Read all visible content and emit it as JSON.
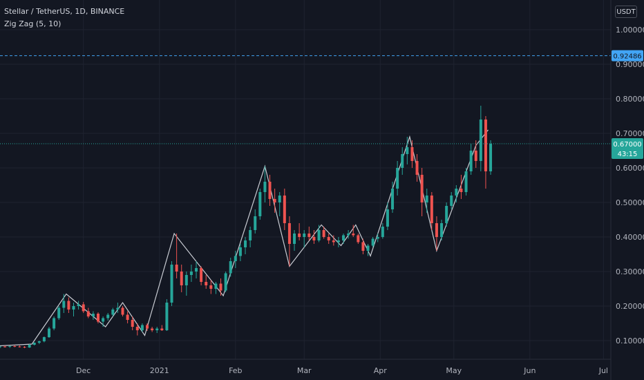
{
  "header": {
    "title": "Stellar / TetherUS, 1D, BINANCE",
    "indicator": "Zig Zag (5, 10)",
    "currency": "USDT"
  },
  "colors": {
    "background": "#131722",
    "grid": "#1f2330",
    "up": "#26a69a",
    "down": "#ef5350",
    "zigzag": "#c9ccd3",
    "alert": "#42a5f5",
    "price_label": "#26a69a"
  },
  "chart_data": {
    "type": "candlestick",
    "yticks": [
      "1.00000",
      "0.90000",
      "0.80000",
      "0.70000",
      "0.60000",
      "0.50000",
      "0.40000",
      "0.30000",
      "0.20000",
      "0.10000"
    ],
    "ytick_values": [
      1.0,
      0.9,
      0.8,
      0.7,
      0.6,
      0.5,
      0.4,
      0.3,
      0.2,
      0.1
    ],
    "ylim": [
      0.03,
      1.07
    ],
    "xlim": [
      "2020-10-28",
      "2021-07-04"
    ],
    "xticks": [
      {
        "label": "Dec",
        "date": "2020-12-01"
      },
      {
        "label": "2021",
        "date": "2021-01-01"
      },
      {
        "label": "Feb",
        "date": "2021-02-01"
      },
      {
        "label": "Mar",
        "date": "2021-03-01"
      },
      {
        "label": "Apr",
        "date": "2021-04-01"
      },
      {
        "label": "May",
        "date": "2021-05-01"
      },
      {
        "label": "Jun",
        "date": "2021-06-01"
      },
      {
        "label": "Jul",
        "date": "2021-07-01"
      }
    ],
    "grid": true,
    "alert_level": {
      "value": 0.92486,
      "label": "0.92486"
    },
    "last_price": {
      "value": 0.67,
      "label": "0.67000",
      "countdown": "43:15"
    },
    "zigzag": [
      {
        "date": "2020-10-28",
        "value": 0.085
      },
      {
        "date": "2020-11-10",
        "value": 0.09
      },
      {
        "date": "2020-11-24",
        "value": 0.235
      },
      {
        "date": "2020-12-10",
        "value": 0.14
      },
      {
        "date": "2020-12-17",
        "value": 0.21
      },
      {
        "date": "2020-12-26",
        "value": 0.115
      },
      {
        "date": "2021-01-07",
        "value": 0.41
      },
      {
        "date": "2021-01-27",
        "value": 0.23
      },
      {
        "date": "2021-02-13",
        "value": 0.605
      },
      {
        "date": "2021-02-23",
        "value": 0.315
      },
      {
        "date": "2021-03-08",
        "value": 0.435
      },
      {
        "date": "2021-03-16",
        "value": 0.375
      },
      {
        "date": "2021-03-22",
        "value": 0.435
      },
      {
        "date": "2021-03-28",
        "value": 0.345
      },
      {
        "date": "2021-04-13",
        "value": 0.69
      },
      {
        "date": "2021-04-24",
        "value": 0.36
      },
      {
        "date": "2021-05-10",
        "value": 0.665
      },
      {
        "date": "2021-05-15",
        "value": 0.71
      }
    ],
    "candles": [
      [
        "2020-10-28",
        0.081,
        0.084,
        0.078,
        0.083
      ],
      [
        "2020-10-30",
        0.083,
        0.086,
        0.08,
        0.082
      ],
      [
        "2020-11-01",
        0.082,
        0.085,
        0.079,
        0.084
      ],
      [
        "2020-11-03",
        0.084,
        0.087,
        0.081,
        0.083
      ],
      [
        "2020-11-05",
        0.083,
        0.086,
        0.08,
        0.082
      ],
      [
        "2020-11-07",
        0.082,
        0.084,
        0.078,
        0.08
      ],
      [
        "2020-11-09",
        0.08,
        0.09,
        0.079,
        0.088
      ],
      [
        "2020-11-11",
        0.088,
        0.095,
        0.086,
        0.094
      ],
      [
        "2020-11-13",
        0.094,
        0.1,
        0.09,
        0.098
      ],
      [
        "2020-11-15",
        0.098,
        0.112,
        0.095,
        0.11
      ],
      [
        "2020-11-17",
        0.11,
        0.14,
        0.108,
        0.135
      ],
      [
        "2020-11-19",
        0.135,
        0.17,
        0.13,
        0.165
      ],
      [
        "2020-11-21",
        0.165,
        0.2,
        0.16,
        0.195
      ],
      [
        "2020-11-23",
        0.195,
        0.235,
        0.18,
        0.215
      ],
      [
        "2020-11-25",
        0.215,
        0.225,
        0.18,
        0.19
      ],
      [
        "2020-11-27",
        0.19,
        0.21,
        0.17,
        0.2
      ],
      [
        "2020-11-29",
        0.2,
        0.215,
        0.19,
        0.205
      ],
      [
        "2020-12-01",
        0.205,
        0.212,
        0.18,
        0.185
      ],
      [
        "2020-12-03",
        0.185,
        0.195,
        0.165,
        0.17
      ],
      [
        "2020-12-05",
        0.17,
        0.185,
        0.16,
        0.178
      ],
      [
        "2020-12-07",
        0.178,
        0.182,
        0.15,
        0.155
      ],
      [
        "2020-12-09",
        0.155,
        0.17,
        0.14,
        0.165
      ],
      [
        "2020-12-11",
        0.165,
        0.18,
        0.158,
        0.175
      ],
      [
        "2020-12-13",
        0.175,
        0.195,
        0.17,
        0.19
      ],
      [
        "2020-12-15",
        0.19,
        0.21,
        0.18,
        0.195
      ],
      [
        "2020-12-17",
        0.195,
        0.2,
        0.17,
        0.175
      ],
      [
        "2020-12-19",
        0.175,
        0.185,
        0.15,
        0.16
      ],
      [
        "2020-12-21",
        0.16,
        0.17,
        0.13,
        0.14
      ],
      [
        "2020-12-23",
        0.14,
        0.15,
        0.115,
        0.13
      ],
      [
        "2020-12-25",
        0.13,
        0.15,
        0.125,
        0.145
      ],
      [
        "2020-12-27",
        0.145,
        0.15,
        0.128,
        0.135
      ],
      [
        "2020-12-29",
        0.135,
        0.14,
        0.125,
        0.13
      ],
      [
        "2020-12-31",
        0.13,
        0.14,
        0.122,
        0.135
      ],
      [
        "2021-01-02",
        0.135,
        0.145,
        0.128,
        0.13
      ],
      [
        "2021-01-04",
        0.13,
        0.22,
        0.128,
        0.21
      ],
      [
        "2021-01-06",
        0.21,
        0.33,
        0.2,
        0.32
      ],
      [
        "2021-01-08",
        0.32,
        0.41,
        0.28,
        0.3
      ],
      [
        "2021-01-10",
        0.3,
        0.32,
        0.24,
        0.26
      ],
      [
        "2021-01-12",
        0.26,
        0.3,
        0.23,
        0.29
      ],
      [
        "2021-01-14",
        0.29,
        0.32,
        0.27,
        0.3
      ],
      [
        "2021-01-16",
        0.3,
        0.33,
        0.28,
        0.31
      ],
      [
        "2021-01-18",
        0.31,
        0.315,
        0.26,
        0.27
      ],
      [
        "2021-01-20",
        0.27,
        0.29,
        0.25,
        0.26
      ],
      [
        "2021-01-22",
        0.26,
        0.275,
        0.235,
        0.25
      ],
      [
        "2021-01-24",
        0.25,
        0.27,
        0.235,
        0.265
      ],
      [
        "2021-01-26",
        0.265,
        0.28,
        0.23,
        0.245
      ],
      [
        "2021-01-28",
        0.245,
        0.3,
        0.24,
        0.295
      ],
      [
        "2021-01-30",
        0.295,
        0.34,
        0.285,
        0.33
      ],
      [
        "2021-02-01",
        0.33,
        0.36,
        0.31,
        0.345
      ],
      [
        "2021-02-03",
        0.345,
        0.38,
        0.33,
        0.37
      ],
      [
        "2021-02-05",
        0.37,
        0.4,
        0.35,
        0.39
      ],
      [
        "2021-02-07",
        0.39,
        0.43,
        0.37,
        0.42
      ],
      [
        "2021-02-09",
        0.42,
        0.48,
        0.41,
        0.46
      ],
      [
        "2021-02-11",
        0.46,
        0.54,
        0.45,
        0.53
      ],
      [
        "2021-02-13",
        0.53,
        0.605,
        0.5,
        0.56
      ],
      [
        "2021-02-15",
        0.56,
        0.58,
        0.49,
        0.51
      ],
      [
        "2021-02-17",
        0.51,
        0.54,
        0.47,
        0.5
      ],
      [
        "2021-02-19",
        0.5,
        0.53,
        0.46,
        0.52
      ],
      [
        "2021-02-21",
        0.52,
        0.54,
        0.42,
        0.44
      ],
      [
        "2021-02-23",
        0.44,
        0.46,
        0.315,
        0.38
      ],
      [
        "2021-02-25",
        0.38,
        0.42,
        0.36,
        0.41
      ],
      [
        "2021-02-27",
        0.41,
        0.44,
        0.39,
        0.4
      ],
      [
        "2021-03-01",
        0.4,
        0.42,
        0.37,
        0.41
      ],
      [
        "2021-03-03",
        0.41,
        0.43,
        0.39,
        0.4
      ],
      [
        "2021-03-05",
        0.4,
        0.42,
        0.38,
        0.39
      ],
      [
        "2021-03-07",
        0.39,
        0.435,
        0.385,
        0.42
      ],
      [
        "2021-03-09",
        0.42,
        0.43,
        0.395,
        0.4
      ],
      [
        "2021-03-11",
        0.4,
        0.41,
        0.38,
        0.39
      ],
      [
        "2021-03-13",
        0.39,
        0.405,
        0.375,
        0.385
      ],
      [
        "2021-03-15",
        0.385,
        0.4,
        0.37,
        0.39
      ],
      [
        "2021-03-17",
        0.39,
        0.41,
        0.38,
        0.405
      ],
      [
        "2021-03-19",
        0.405,
        0.42,
        0.395,
        0.41
      ],
      [
        "2021-03-21",
        0.41,
        0.435,
        0.4,
        0.405
      ],
      [
        "2021-03-23",
        0.405,
        0.41,
        0.38,
        0.385
      ],
      [
        "2021-03-25",
        0.385,
        0.395,
        0.35,
        0.36
      ],
      [
        "2021-03-27",
        0.36,
        0.38,
        0.345,
        0.375
      ],
      [
        "2021-03-29",
        0.375,
        0.4,
        0.37,
        0.395
      ],
      [
        "2021-03-31",
        0.395,
        0.41,
        0.385,
        0.4
      ],
      [
        "2021-04-02",
        0.4,
        0.44,
        0.395,
        0.43
      ],
      [
        "2021-04-04",
        0.43,
        0.5,
        0.42,
        0.48
      ],
      [
        "2021-04-06",
        0.48,
        0.56,
        0.47,
        0.54
      ],
      [
        "2021-04-08",
        0.54,
        0.62,
        0.52,
        0.6
      ],
      [
        "2021-04-10",
        0.6,
        0.66,
        0.58,
        0.64
      ],
      [
        "2021-04-12",
        0.64,
        0.69,
        0.61,
        0.66
      ],
      [
        "2021-04-14",
        0.66,
        0.68,
        0.6,
        0.62
      ],
      [
        "2021-04-16",
        0.62,
        0.64,
        0.56,
        0.58
      ],
      [
        "2021-04-18",
        0.58,
        0.6,
        0.46,
        0.5
      ],
      [
        "2021-04-20",
        0.5,
        0.54,
        0.47,
        0.52
      ],
      [
        "2021-04-22",
        0.52,
        0.53,
        0.42,
        0.44
      ],
      [
        "2021-04-24",
        0.44,
        0.46,
        0.36,
        0.4
      ],
      [
        "2021-04-26",
        0.4,
        0.45,
        0.39,
        0.44
      ],
      [
        "2021-04-28",
        0.44,
        0.5,
        0.43,
        0.49
      ],
      [
        "2021-04-30",
        0.49,
        0.53,
        0.48,
        0.52
      ],
      [
        "2021-05-02",
        0.52,
        0.55,
        0.5,
        0.54
      ],
      [
        "2021-05-04",
        0.54,
        0.58,
        0.51,
        0.53
      ],
      [
        "2021-05-06",
        0.53,
        0.6,
        0.52,
        0.59
      ],
      [
        "2021-05-08",
        0.59,
        0.67,
        0.58,
        0.65
      ],
      [
        "2021-05-10",
        0.65,
        0.68,
        0.6,
        0.62
      ],
      [
        "2021-05-12",
        0.62,
        0.78,
        0.59,
        0.74
      ],
      [
        "2021-05-14",
        0.74,
        0.75,
        0.54,
        0.59
      ],
      [
        "2021-05-16",
        0.59,
        0.68,
        0.58,
        0.67
      ]
    ]
  }
}
